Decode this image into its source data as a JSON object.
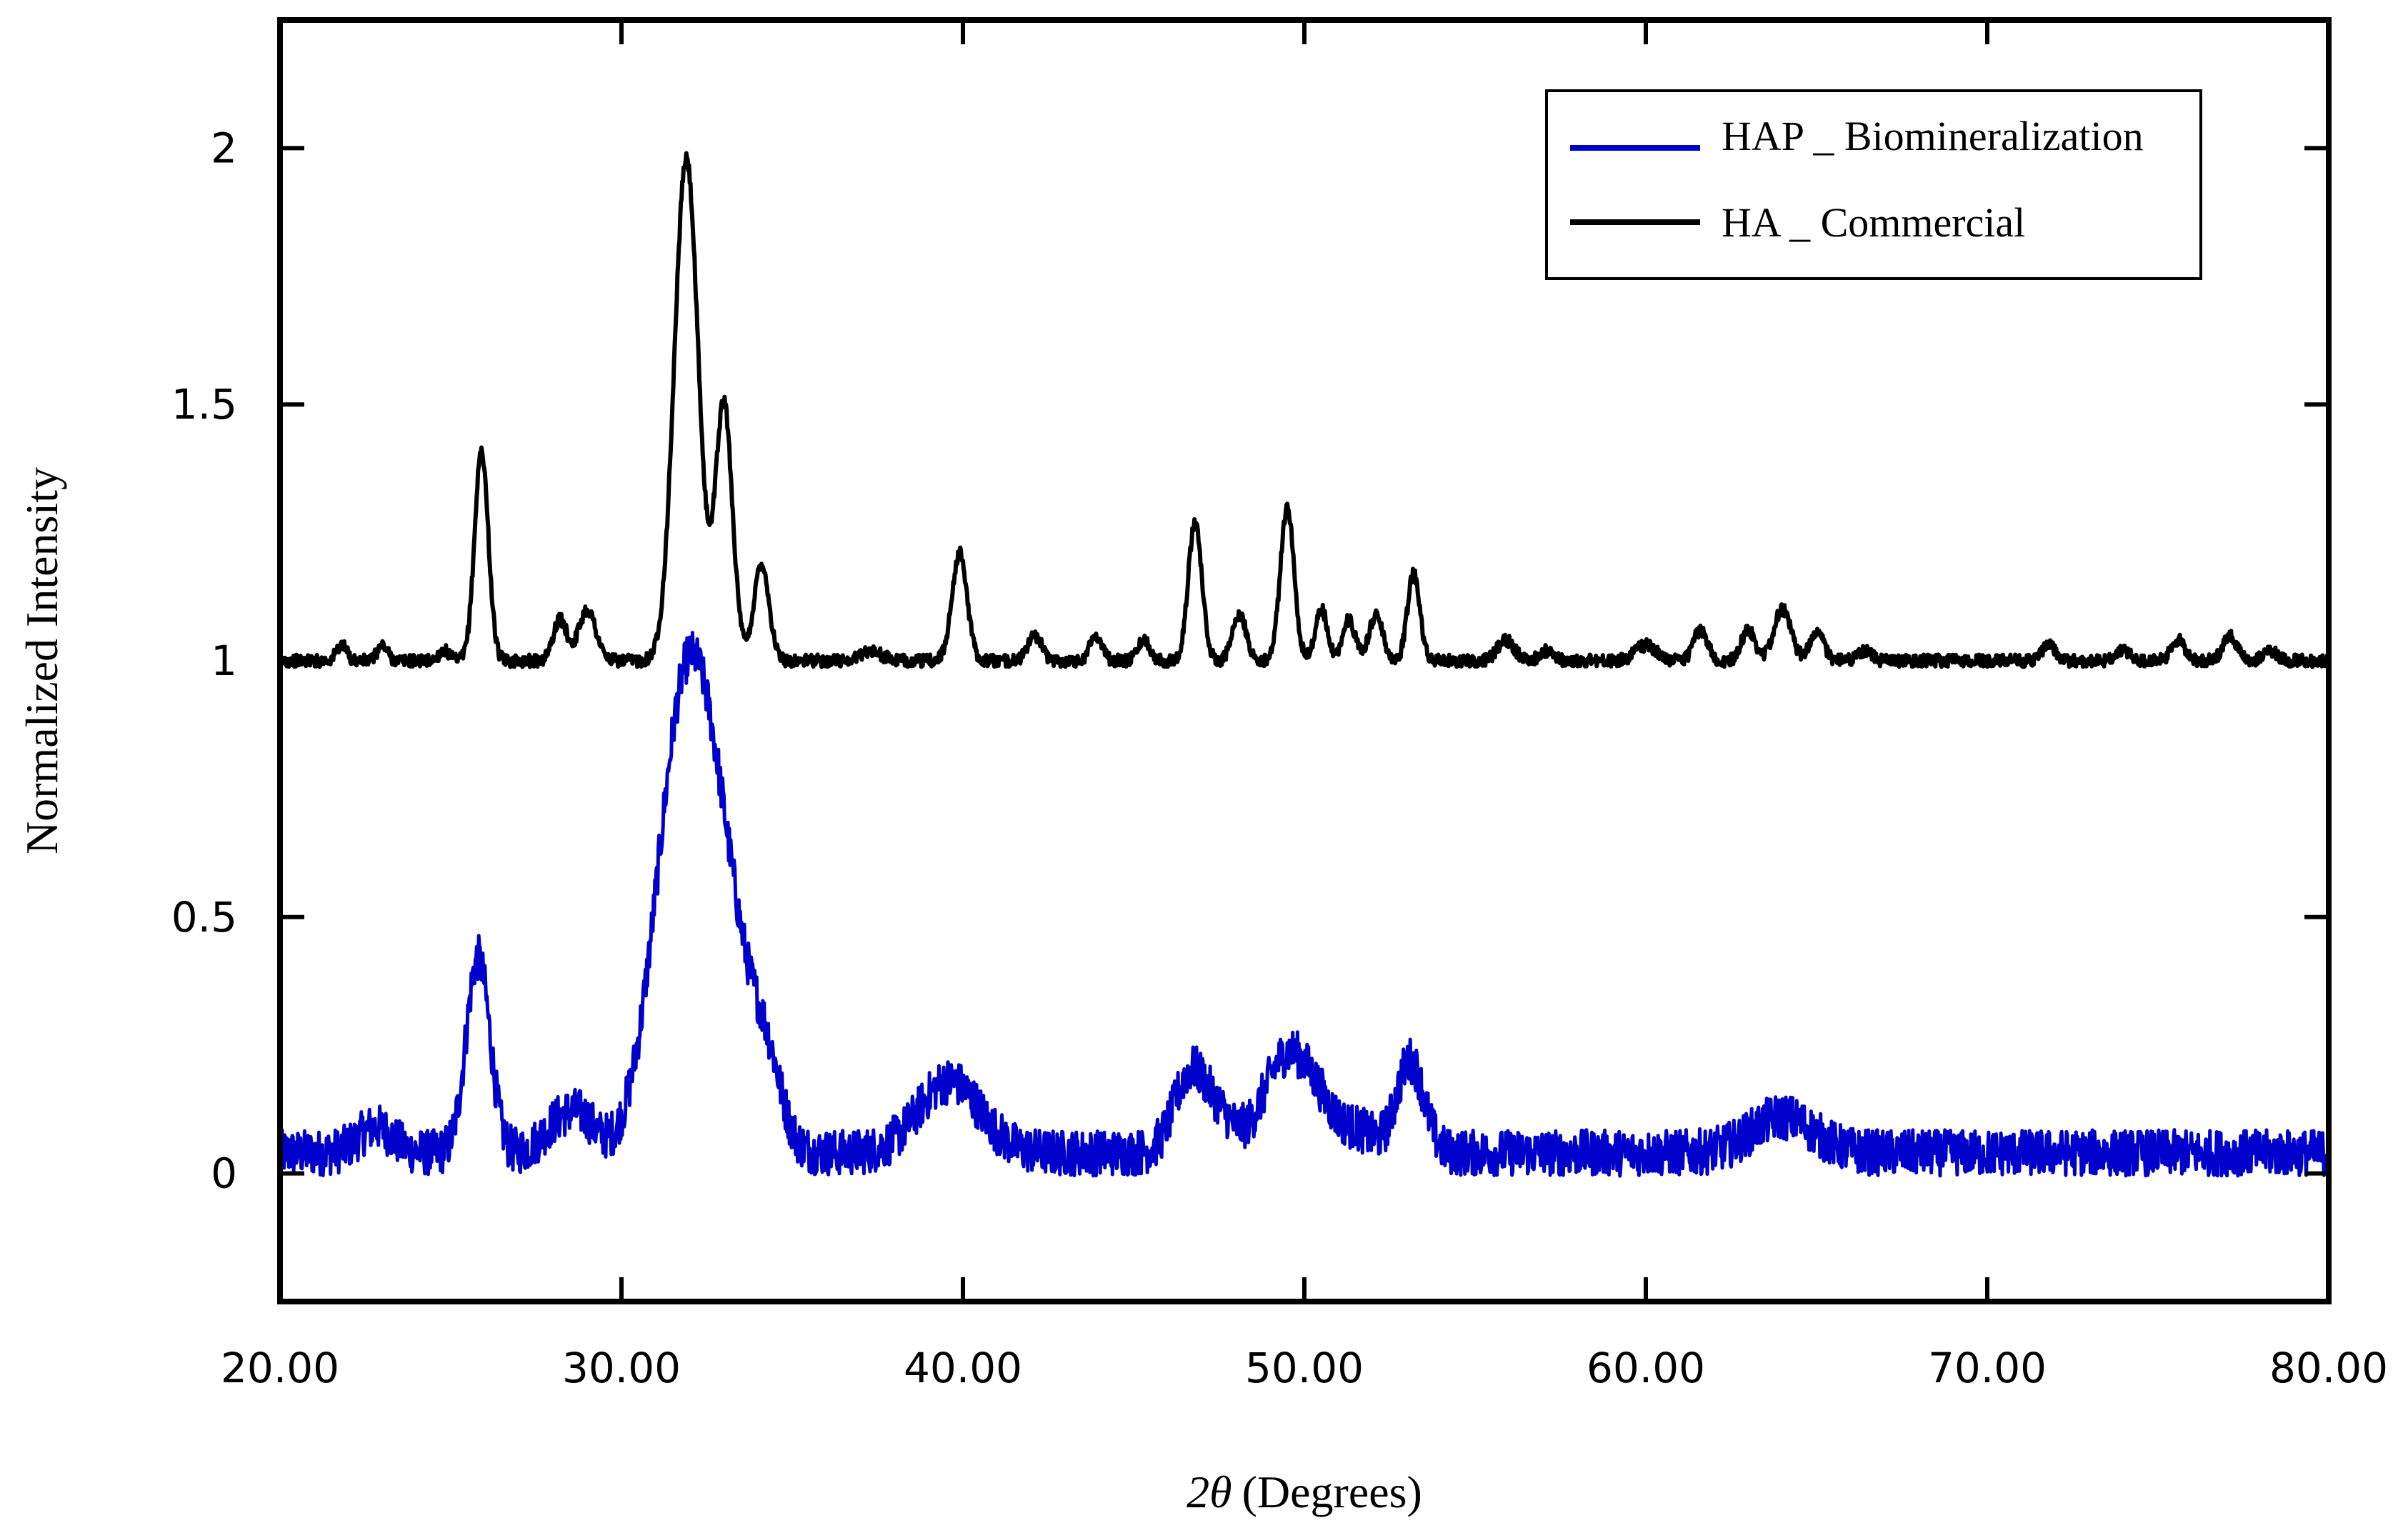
{
  "chart_data": {
    "type": "line",
    "title": "",
    "xlabel_symbol": "2θ",
    "xlabel_unit": "(Degrees)",
    "ylabel": "Normalized  Intensity",
    "xlim": [
      20,
      80
    ],
    "ylim": [
      -0.25,
      2.25
    ],
    "xticks": [
      20,
      30,
      40,
      50,
      60,
      70,
      80
    ],
    "xtick_labels": [
      "20.00",
      "30.00",
      "40.00",
      "50.00",
      "60.00",
      "70.00",
      "80.00"
    ],
    "yticks": [
      0,
      0.5,
      1,
      1.5,
      2
    ],
    "ytick_labels": [
      "0",
      "0.5",
      "1",
      "1.5",
      "2"
    ],
    "grid": false,
    "legend_position": "top-right",
    "series": [
      {
        "name": "HAP _ Biomineralization",
        "color": "#0000cc",
        "baseline": 0.04,
        "noise": 0.045,
        "peaks": [
          {
            "x": 22.8,
            "h": 0.05,
            "w": 0.5
          },
          {
            "x": 25.8,
            "h": 0.38,
            "w": 0.35
          },
          {
            "x": 28.2,
            "h": 0.06,
            "w": 0.5
          },
          {
            "x": 28.9,
            "h": 0.05,
            "w": 0.4
          },
          {
            "x": 31.9,
            "h": 0.88,
            "w": 0.85
          },
          {
            "x": 33.2,
            "h": 0.3,
            "w": 0.8
          },
          {
            "x": 34.3,
            "h": 0.1,
            "w": 0.4
          },
          {
            "x": 39.6,
            "h": 0.14,
            "w": 0.9
          },
          {
            "x": 46.7,
            "h": 0.16,
            "w": 0.5
          },
          {
            "x": 47.6,
            "h": 0.05,
            "w": 0.4
          },
          {
            "x": 49.5,
            "h": 0.19,
            "w": 0.7
          },
          {
            "x": 50.5,
            "h": 0.05,
            "w": 0.5
          },
          {
            "x": 51.6,
            "h": 0.04,
            "w": 0.5
          },
          {
            "x": 53.1,
            "h": 0.18,
            "w": 0.4
          },
          {
            "x": 64.0,
            "h": 0.07,
            "w": 0.9
          }
        ]
      },
      {
        "name": "HA _ Commercial",
        "color": "#000000",
        "baseline": 1.0,
        "noise": 0.012,
        "peaks": [
          {
            "x": 21.8,
            "h": 0.03,
            "w": 0.15
          },
          {
            "x": 23.0,
            "h": 0.03,
            "w": 0.15
          },
          {
            "x": 24.8,
            "h": 0.02,
            "w": 0.15
          },
          {
            "x": 25.9,
            "h": 0.41,
            "w": 0.2
          },
          {
            "x": 28.2,
            "h": 0.08,
            "w": 0.2
          },
          {
            "x": 29.0,
            "h": 0.1,
            "w": 0.25
          },
          {
            "x": 31.9,
            "h": 0.98,
            "w": 0.35
          },
          {
            "x": 33.0,
            "h": 0.5,
            "w": 0.25
          },
          {
            "x": 34.1,
            "h": 0.19,
            "w": 0.22
          },
          {
            "x": 37.3,
            "h": 0.02,
            "w": 0.3
          },
          {
            "x": 39.9,
            "h": 0.21,
            "w": 0.22
          },
          {
            "x": 42.1,
            "h": 0.05,
            "w": 0.2
          },
          {
            "x": 43.9,
            "h": 0.05,
            "w": 0.18
          },
          {
            "x": 45.3,
            "h": 0.04,
            "w": 0.18
          },
          {
            "x": 46.8,
            "h": 0.27,
            "w": 0.2
          },
          {
            "x": 48.1,
            "h": 0.09,
            "w": 0.2
          },
          {
            "x": 49.5,
            "h": 0.3,
            "w": 0.2
          },
          {
            "x": 50.5,
            "h": 0.1,
            "w": 0.18
          },
          {
            "x": 51.3,
            "h": 0.08,
            "w": 0.18
          },
          {
            "x": 52.1,
            "h": 0.09,
            "w": 0.2
          },
          {
            "x": 53.2,
            "h": 0.17,
            "w": 0.18
          },
          {
            "x": 55.9,
            "h": 0.04,
            "w": 0.25
          },
          {
            "x": 57.1,
            "h": 0.02,
            "w": 0.2
          },
          {
            "x": 60.0,
            "h": 0.03,
            "w": 0.3
          },
          {
            "x": 61.6,
            "h": 0.06,
            "w": 0.2
          },
          {
            "x": 63.0,
            "h": 0.06,
            "w": 0.2
          },
          {
            "x": 64.0,
            "h": 0.1,
            "w": 0.25
          },
          {
            "x": 65.0,
            "h": 0.06,
            "w": 0.2
          },
          {
            "x": 66.4,
            "h": 0.02,
            "w": 0.2
          },
          {
            "x": 71.8,
            "h": 0.03,
            "w": 0.2
          },
          {
            "x": 74.0,
            "h": 0.02,
            "w": 0.2
          },
          {
            "x": 75.6,
            "h": 0.04,
            "w": 0.2
          },
          {
            "x": 77.1,
            "h": 0.05,
            "w": 0.2
          },
          {
            "x": 78.3,
            "h": 0.02,
            "w": 0.2
          }
        ]
      }
    ]
  }
}
